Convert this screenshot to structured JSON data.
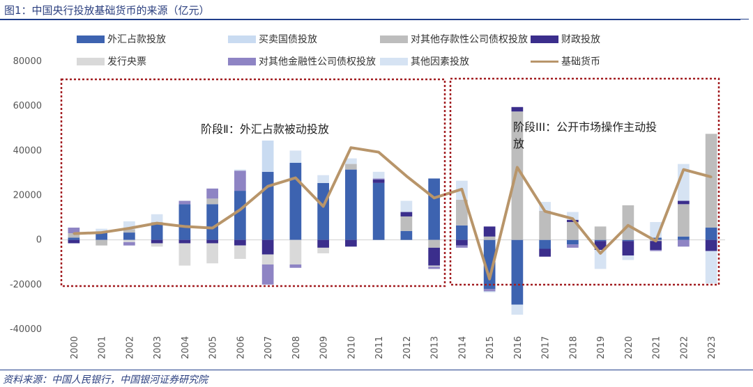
{
  "title": "图1：中国央行投放基础货币的来源（亿元）",
  "source": "资料来源：中国人民银行，中国银河证券研究院",
  "colors": {
    "waihui": "#3d63b0",
    "gaizhai": "#c9dbf1",
    "duicun": "#bdbdbd",
    "caizheng": "#3b2e8c",
    "yangpiao": "#d9d9d9",
    "duijinrong": "#8e84c4",
    "qita": "#d6e3f3",
    "line": "#b8956a",
    "box": "#a21d21"
  },
  "legend": [
    {
      "key": "waihui",
      "label": "外汇占款投放",
      "kind": "bar"
    },
    {
      "key": "gaizhai",
      "label": "买卖国债投放",
      "kind": "bar"
    },
    {
      "key": "duicun",
      "label": "对其他存款性公司债权投放",
      "kind": "bar"
    },
    {
      "key": "caizheng",
      "label": "财政投放",
      "kind": "bar"
    },
    {
      "key": "yangpiao",
      "label": "发行央票",
      "kind": "bar"
    },
    {
      "key": "duijinrong",
      "label": "对其他金融性公司债权投放",
      "kind": "bar"
    },
    {
      "key": "qita",
      "label": "其他因素投放",
      "kind": "bar"
    },
    {
      "key": "line",
      "label": "基础货币",
      "kind": "line"
    }
  ],
  "annotations": {
    "stage2": "阶段Ⅱ：外汇占款被动投放",
    "stage3_line1": "阶段III：公开市场操作主动投",
    "stage3_line2": "放"
  },
  "chart_data": {
    "type": "bar",
    "stacked": true,
    "title": "中国央行投放基础货币的来源（亿元）",
    "xlabel": "",
    "ylabel": "亿元",
    "ylim": [
      -40000,
      80000
    ],
    "yticks": [
      80000,
      60000,
      40000,
      20000,
      0,
      -20000,
      -40000
    ],
    "categories": [
      "2000",
      "2001",
      "2002",
      "2003",
      "2004",
      "2005",
      "2006",
      "2007",
      "2008",
      "2009",
      "2010",
      "2011",
      "2012",
      "2013",
      "2014",
      "2015",
      "2016",
      "2017",
      "2018",
      "2019",
      "2020",
      "2021",
      "2022",
      "2023"
    ],
    "series": [
      {
        "key": "waihui",
        "name": "外汇占款投放",
        "values": [
          1000,
          3500,
          3300,
          7000,
          16000,
          16000,
          22000,
          30500,
          34500,
          25500,
          31500,
          25500,
          4000,
          27500,
          6500,
          -22000,
          -29000,
          -4000,
          -2000,
          -500,
          -500,
          1000,
          1500,
          5500
        ]
      },
      {
        "key": "gaizhai",
        "name": "买卖国债投放",
        "values": [
          0,
          0,
          0,
          0,
          0,
          0,
          0,
          14000,
          500,
          0,
          0,
          0,
          0,
          0,
          0,
          0,
          0,
          0,
          0,
          0,
          0,
          0,
          0,
          0
        ]
      },
      {
        "key": "duicun",
        "name": "对其他存款性公司债权投放",
        "values": [
          2000,
          -2500,
          1500,
          1000,
          0,
          2500,
          0,
          0,
          0,
          0,
          2500,
          0,
          6500,
          -3500,
          11500,
          1500,
          57500,
          13000,
          8000,
          6000,
          15500,
          -500,
          14500,
          42000
        ]
      },
      {
        "key": "caizheng",
        "name": "财政投放",
        "values": [
          -1500,
          0,
          0,
          -1500,
          -1500,
          -1500,
          -2500,
          -6500,
          0,
          -3500,
          -3000,
          1500,
          2000,
          -8000,
          -2500,
          4500,
          2000,
          -3500,
          1000,
          -4000,
          -6500,
          -4000,
          1500,
          -5000
        ]
      },
      {
        "key": "yangpiao",
        "name": "发行央票",
        "values": [
          0,
          0,
          -1000,
          -1500,
          -10000,
          -9000,
          -6000,
          -4500,
          -11000,
          -2500,
          0,
          0,
          0,
          -500,
          0,
          0,
          0,
          0,
          0,
          0,
          0,
          0,
          0,
          0
        ]
      },
      {
        "key": "duijinrong",
        "name": "对其他金融性公司债权投放",
        "values": [
          2500,
          0,
          -1500,
          0,
          1500,
          4500,
          9000,
          -9000,
          -1500,
          0,
          0,
          500,
          0,
          -1000,
          -1000,
          -1000,
          0,
          0,
          -1500,
          0,
          0,
          -500,
          -3000,
          0
        ]
      },
      {
        "key": "qita",
        "name": "其他因素投放",
        "values": [
          0,
          1500,
          3500,
          3500,
          0,
          0,
          500,
          0,
          5000,
          3500,
          2500,
          3000,
          5000,
          0,
          8500,
          -500,
          -4500,
          4000,
          3500,
          -8500,
          -2000,
          7000,
          16500,
          -14500
        ]
      }
    ],
    "line": {
      "key": "line",
      "name": "基础货币",
      "values": [
        2800,
        3300,
        5200,
        7500,
        6000,
        5300,
        13500,
        24000,
        27800,
        15000,
        41300,
        39300,
        28600,
        18800,
        22700,
        -17500,
        32500,
        12800,
        9500,
        -6000,
        6500,
        -500,
        31500,
        28200
      ]
    }
  }
}
